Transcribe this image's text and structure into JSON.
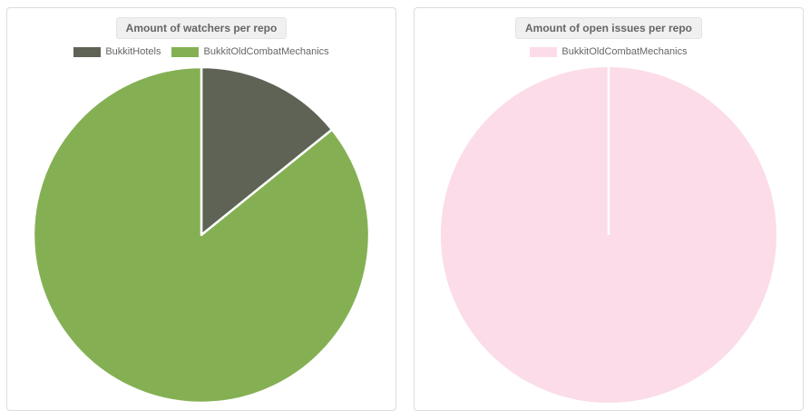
{
  "page": {
    "background": "#ffffff",
    "card_border": "#dcdcdc",
    "title_badge_bg": "#f0f0f0",
    "text_color": "#666666"
  },
  "chart_data": [
    {
      "type": "pie",
      "title": "Amount of watchers per repo",
      "categories": [
        "BukkitHotels",
        "BukkitOldCombatMechanics"
      ],
      "values": [
        14.2,
        85.8
      ],
      "colors": [
        "#5e6356",
        "#84b053"
      ],
      "slice_border_color": "#ffffff",
      "legend_position": "top",
      "start_angle": "top",
      "direction": "clockwise"
    },
    {
      "type": "pie",
      "title": "Amount of open issues per repo",
      "categories": [
        "BukkitOldCombatMechanics"
      ],
      "values": [
        100
      ],
      "colors": [
        "#fbdce8"
      ],
      "slice_border_color": "#ffffff",
      "legend_position": "top",
      "start_angle": "top",
      "direction": "clockwise"
    }
  ]
}
